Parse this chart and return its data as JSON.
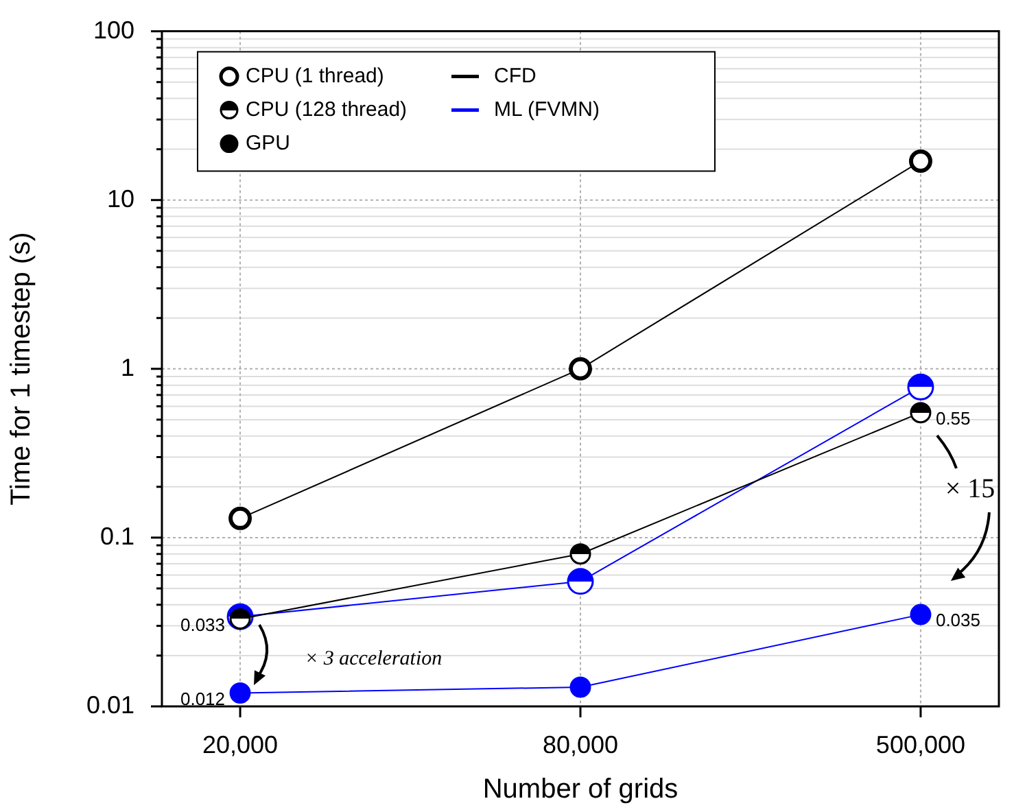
{
  "chart_data": {
    "type": "line",
    "xlabel": "Number of grids",
    "ylabel": "Time for 1 timestep (s)",
    "categories": [
      "20,000",
      "80,000",
      "500,000"
    ],
    "log": true,
    "ylim": [
      0.01,
      100
    ],
    "yticks": [
      0.01,
      {
        "value": 0.02,
        "label": null
      },
      {
        "value": 0.03,
        "label": null
      },
      {
        "value": 0.04,
        "label": null
      },
      {
        "value": 0.05,
        "label": null
      },
      {
        "value": 0.06,
        "label": null
      },
      {
        "value": 0.07,
        "label": null
      },
      {
        "value": 0.08,
        "label": null
      },
      {
        "value": 0.09,
        "label": null
      },
      0.1,
      {
        "value": 0.2,
        "label": null
      },
      {
        "value": 0.3,
        "label": null
      },
      {
        "value": 0.4,
        "label": null
      },
      {
        "value": 0.5,
        "label": null
      },
      {
        "value": 0.6,
        "label": null
      },
      {
        "value": 0.7,
        "label": null
      },
      {
        "value": 0.8,
        "label": null
      },
      {
        "value": 0.9,
        "label": null
      },
      1,
      {
        "value": 2,
        "label": null
      },
      {
        "value": 3,
        "label": null
      },
      {
        "value": 4,
        "label": null
      },
      {
        "value": 5,
        "label": null
      },
      {
        "value": 6,
        "label": null
      },
      {
        "value": 7,
        "label": null
      },
      {
        "value": 8,
        "label": null
      },
      {
        "value": 9,
        "label": null
      },
      10,
      {
        "value": 20,
        "label": null
      },
      {
        "value": 30,
        "label": null
      },
      {
        "value": 40,
        "label": null
      },
      {
        "value": 50,
        "label": null
      },
      {
        "value": 60,
        "label": null
      },
      {
        "value": 70,
        "label": null
      },
      {
        "value": 80,
        "label": null
      },
      {
        "value": 90,
        "label": null
      },
      100
    ],
    "grid": true,
    "legend": "top left",
    "line_style": "solid",
    "marker": "circle",
    "series": [
      {
        "color": "#000000",
        "values": [
          0.13,
          1,
          17
        ]
      },
      {
        "color": "#000000",
        "values": [
          0.033,
          0.08,
          0.55
        ],
        "value_labels": [
          "0.033",
          null,
          "0.55"
        ]
      },
      {
        "color": "#0000ff",
        "values": [
          0.034,
          0.055,
          0.78
        ]
      },
      {
        "color": "#0000ff",
        "values": [
          0.012,
          0.013,
          0.035
        ],
        "value_labels": [
          "0.012",
          null,
          "0.035"
        ]
      },
      {
        "name": "CPU (1 thread)",
        "color": "#000000",
        "values": [
          null,
          null,
          null
        ]
      },
      {
        "name": "CPU (128 thread)",
        "color": "#000000",
        "values": [
          null,
          null,
          null
        ]
      },
      {
        "name": "GPU",
        "color": "#000000",
        "values": [
          null,
          null,
          null
        ]
      },
      {
        "name": "CFD",
        "color": "#000000",
        "marker": "none",
        "values": [
          null,
          null,
          null
        ]
      },
      {
        "name": "ML (FVMN)",
        "color": "#0000ff",
        "marker": "none",
        "values": [
          null,
          null,
          null
        ]
      }
    ],
    "annotations": [
      "× 3 acceleration",
      "× 15"
    ]
  }
}
